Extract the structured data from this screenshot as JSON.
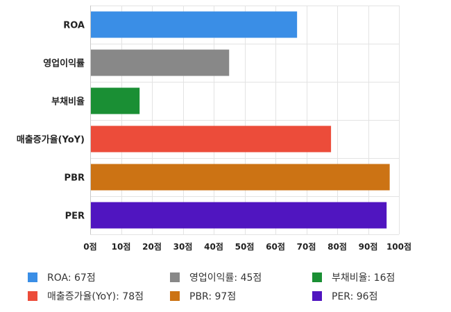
{
  "chart_data": {
    "type": "bar",
    "orientation": "horizontal",
    "categories": [
      "ROA",
      "영업이익률",
      "부채비율",
      "매출증가율(YoY)",
      "PBR",
      "PER"
    ],
    "values": [
      67,
      45,
      16,
      78,
      97,
      96
    ],
    "colors": [
      "#3a8ee6",
      "#888888",
      "#1a8f34",
      "#ec4c3a",
      "#cc7314",
      "#5015c0"
    ],
    "xlim": [
      0,
      100
    ],
    "xticks": [
      0,
      10,
      20,
      30,
      40,
      50,
      60,
      70,
      80,
      90,
      100
    ],
    "tick_suffix": "점",
    "grid": true,
    "legend_position": "bottom",
    "legend": [
      {
        "label": "ROA: 67점",
        "color": "#3a8ee6"
      },
      {
        "label": "영업이익률: 45점",
        "color": "#888888"
      },
      {
        "label": "부채비율: 16점",
        "color": "#1a8f34"
      },
      {
        "label": "매출증가율(YoY): 78점",
        "color": "#ec4c3a"
      },
      {
        "label": "PBR: 97점",
        "color": "#cc7314"
      },
      {
        "label": "PER: 96점",
        "color": "#5015c0"
      }
    ]
  }
}
